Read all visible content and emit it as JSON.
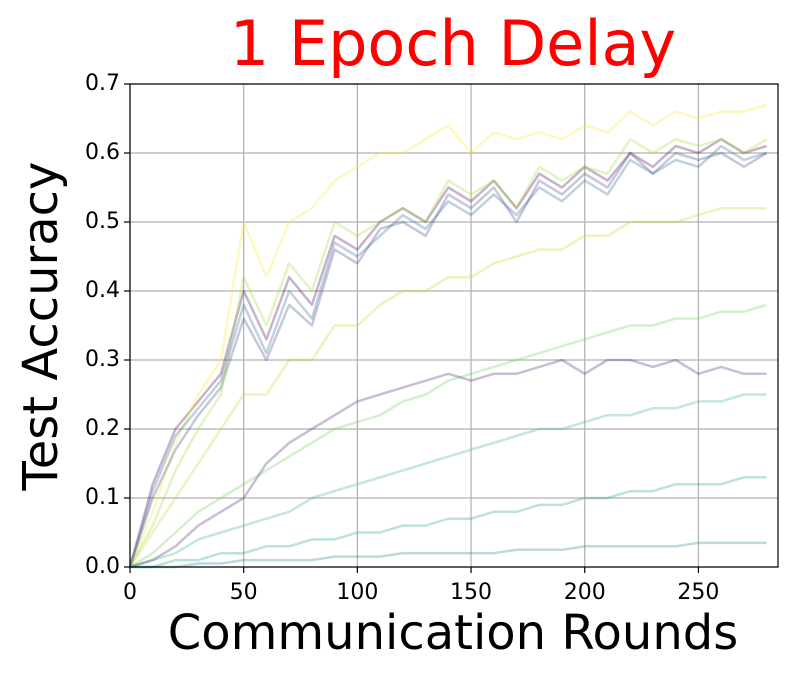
{
  "chart_data": {
    "type": "line",
    "title": "1 Epoch Delay",
    "title_color": "#ff0000",
    "x_label": "Communication Rounds",
    "y_label": "Test Accuracy",
    "x": [
      0,
      10,
      20,
      30,
      40,
      50,
      60,
      70,
      80,
      90,
      100,
      110,
      120,
      130,
      140,
      150,
      160,
      170,
      180,
      190,
      200,
      210,
      220,
      230,
      240,
      250,
      260,
      270,
      280
    ],
    "xlim": [
      0,
      285
    ],
    "xticks": [
      0,
      50,
      100,
      150,
      200,
      250
    ],
    "ylim": [
      0,
      0.7
    ],
    "yticks": [
      {
        "value": 0,
        "label": "0.0"
      },
      0.1,
      0.2,
      0.3,
      0.4,
      0.5,
      0.6,
      0.7
    ],
    "grid": true,
    "series": [
      {
        "color": "#440154",
        "values": [
          0,
          0.12,
          0.2,
          0.24,
          0.28,
          0.4,
          0.33,
          0.42,
          0.38,
          0.48,
          0.46,
          0.5,
          0.52,
          0.5,
          0.55,
          0.53,
          0.56,
          0.52,
          0.57,
          0.55,
          0.58,
          0.56,
          0.6,
          0.58,
          0.61,
          0.6,
          0.62,
          0.6,
          0.61
        ]
      },
      {
        "color": "#fde725",
        "values": [
          0,
          0.08,
          0.18,
          0.25,
          0.3,
          0.5,
          0.42,
          0.5,
          0.52,
          0.56,
          0.58,
          0.6,
          0.6,
          0.62,
          0.64,
          0.6,
          0.63,
          0.62,
          0.63,
          0.62,
          0.64,
          0.63,
          0.66,
          0.64,
          0.66,
          0.65,
          0.66,
          0.66,
          0.67
        ]
      },
      {
        "color": "#3e4a89",
        "values": [
          0,
          0.1,
          0.17,
          0.22,
          0.26,
          0.36,
          0.3,
          0.38,
          0.35,
          0.46,
          0.44,
          0.49,
          0.5,
          0.48,
          0.54,
          0.52,
          0.55,
          0.5,
          0.56,
          0.54,
          0.57,
          0.55,
          0.6,
          0.57,
          0.6,
          0.59,
          0.6,
          0.58,
          0.6
        ]
      },
      {
        "color": "#b5de2b",
        "values": [
          0,
          0.05,
          0.1,
          0.15,
          0.2,
          0.25,
          0.25,
          0.3,
          0.3,
          0.35,
          0.35,
          0.38,
          0.4,
          0.4,
          0.42,
          0.42,
          0.44,
          0.45,
          0.46,
          0.46,
          0.48,
          0.48,
          0.5,
          0.5,
          0.5,
          0.51,
          0.52,
          0.52,
          0.52
        ]
      },
      {
        "color": "#6ece58",
        "values": [
          0,
          0.02,
          0.05,
          0.08,
          0.1,
          0.12,
          0.14,
          0.16,
          0.18,
          0.2,
          0.21,
          0.22,
          0.24,
          0.25,
          0.27,
          0.28,
          0.29,
          0.3,
          0.31,
          0.32,
          0.33,
          0.34,
          0.35,
          0.35,
          0.36,
          0.36,
          0.37,
          0.37,
          0.38
        ]
      },
      {
        "color": "#35b779",
        "values": [
          0,
          0.01,
          0.02,
          0.04,
          0.05,
          0.06,
          0.07,
          0.08,
          0.1,
          0.11,
          0.12,
          0.13,
          0.14,
          0.15,
          0.16,
          0.17,
          0.18,
          0.19,
          0.2,
          0.2,
          0.21,
          0.22,
          0.22,
          0.23,
          0.23,
          0.24,
          0.24,
          0.25,
          0.25
        ]
      },
      {
        "color": "#1f9e89",
        "values": [
          0,
          0,
          0.01,
          0.01,
          0.02,
          0.02,
          0.03,
          0.03,
          0.04,
          0.04,
          0.05,
          0.05,
          0.06,
          0.06,
          0.07,
          0.07,
          0.08,
          0.08,
          0.09,
          0.09,
          0.1,
          0.1,
          0.11,
          0.11,
          0.12,
          0.12,
          0.12,
          0.13,
          0.13
        ]
      },
      {
        "color": "#26828e",
        "values": [
          0,
          0,
          0,
          0.005,
          0.005,
          0.01,
          0.01,
          0.01,
          0.01,
          0.015,
          0.015,
          0.015,
          0.02,
          0.02,
          0.02,
          0.02,
          0.02,
          0.025,
          0.025,
          0.025,
          0.03,
          0.03,
          0.03,
          0.03,
          0.03,
          0.035,
          0.035,
          0.035,
          0.035
        ]
      },
      {
        "color": "#482878",
        "values": [
          0,
          0.01,
          0.03,
          0.06,
          0.08,
          0.1,
          0.15,
          0.18,
          0.2,
          0.22,
          0.24,
          0.25,
          0.26,
          0.27,
          0.28,
          0.27,
          0.28,
          0.28,
          0.29,
          0.3,
          0.28,
          0.3,
          0.3,
          0.29,
          0.3,
          0.28,
          0.29,
          0.28,
          0.28
        ]
      },
      {
        "color": "#a0da39",
        "values": [
          0,
          0.06,
          0.14,
          0.2,
          0.25,
          0.42,
          0.35,
          0.44,
          0.4,
          0.5,
          0.48,
          0.5,
          0.52,
          0.5,
          0.56,
          0.54,
          0.56,
          0.52,
          0.58,
          0.56,
          0.58,
          0.57,
          0.62,
          0.6,
          0.62,
          0.61,
          0.62,
          0.6,
          0.62
        ]
      },
      {
        "color": "#31688e",
        "values": [
          0,
          0.11,
          0.19,
          0.23,
          0.27,
          0.38,
          0.31,
          0.4,
          0.36,
          0.47,
          0.45,
          0.48,
          0.51,
          0.49,
          0.53,
          0.51,
          0.54,
          0.51,
          0.55,
          0.53,
          0.56,
          0.54,
          0.59,
          0.57,
          0.59,
          0.58,
          0.61,
          0.59,
          0.6
        ]
      }
    ]
  }
}
